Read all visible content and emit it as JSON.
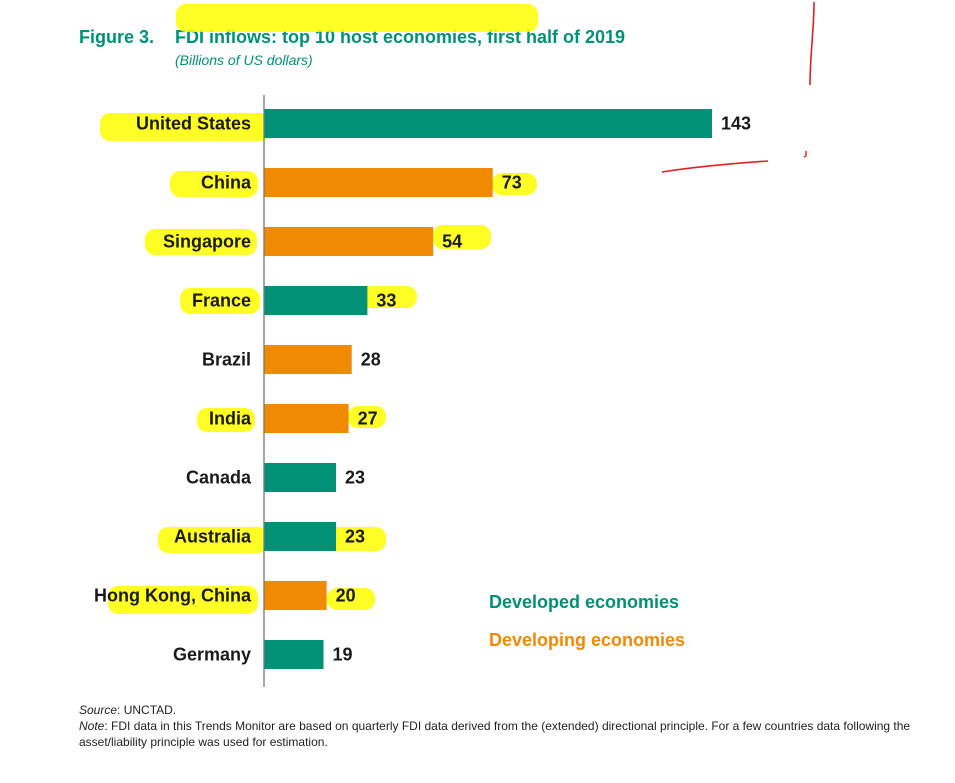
{
  "figure": {
    "number": "Figure 3.",
    "title": "FDI inflows: top 10 host economies, first half of 2019",
    "subtitle": "(Billions of US dollars)"
  },
  "legend": {
    "developed": "Developed economies",
    "developing": "Developing economies"
  },
  "colors": {
    "developed": "#009176",
    "developing": "#F08A00",
    "title": "#009176",
    "highlight": "#FFFF00",
    "annotation": "#E02020"
  },
  "footer": {
    "source_label": "Source",
    "source_text": ": UNCTAD.",
    "note_label": "Note",
    "note_text": ": FDI data in this Trends Monitor are based on quarterly FDI data derived from the (extended) directional principle. For a few countries data following the asset/liability principle was used for estimation."
  },
  "chart_data": {
    "type": "bar",
    "orientation": "horizontal",
    "title": "FDI inflows: top 10 host economies, first half of 2019",
    "subtitle": "(Billions of US dollars)",
    "categories": [
      "United States",
      "China",
      "Singapore",
      "France",
      "Brazil",
      "India",
      "Canada",
      "Australia",
      "Hong Kong, China",
      "Germany"
    ],
    "values": [
      143,
      73,
      54,
      33,
      28,
      27,
      23,
      23,
      20,
      19
    ],
    "groups": [
      "developed",
      "developing",
      "developing",
      "developed",
      "developing",
      "developing",
      "developed",
      "developed",
      "developing",
      "developed"
    ],
    "series": [
      {
        "name": "Developed economies",
        "key": "developed"
      },
      {
        "name": "Developing economies",
        "key": "developing"
      }
    ],
    "data_labels": true,
    "grid": false,
    "legend_position": "bottom-right"
  }
}
